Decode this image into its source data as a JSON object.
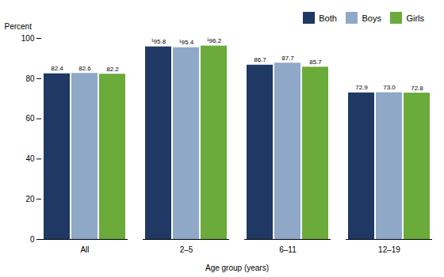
{
  "chart_data": {
    "type": "bar",
    "categories": [
      "All",
      "2–5",
      "6–11",
      "12–19"
    ],
    "series": [
      {
        "name": "Both",
        "color": "#1f3864",
        "values": [
          82.4,
          95.8,
          86.7,
          72.9
        ],
        "value_labels": [
          "82.4",
          "¹95.8",
          "86.7",
          "72.9"
        ]
      },
      {
        "name": "Boys",
        "color": "#8fa8c8",
        "values": [
          82.6,
          95.4,
          87.7,
          73.0
        ],
        "value_labels": [
          "82.6",
          "¹95.4",
          "87.7",
          "73.0"
        ]
      },
      {
        "name": "Girls",
        "color": "#6aab3a",
        "values": [
          82.2,
          96.2,
          85.7,
          72.8
        ],
        "value_labels": [
          "82.2",
          "¹96.2",
          "85.7",
          "72.8"
        ]
      }
    ],
    "xlabel": "Age group (years)",
    "ylabel": "Percent",
    "ylim": [
      0,
      100
    ],
    "yticks": [
      0,
      20,
      40,
      60,
      80,
      100
    ],
    "grid": false,
    "legend": "upper right",
    "data_labels": true
  }
}
